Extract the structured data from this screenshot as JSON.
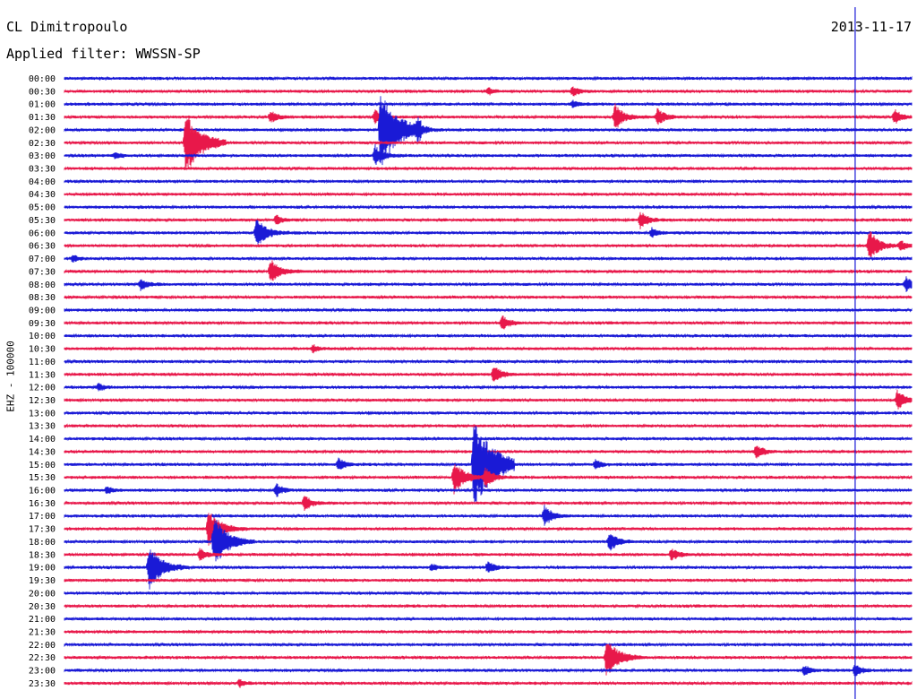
{
  "header": {
    "station": "CL Dimitropoulo",
    "filter": "Applied filter: WWSSN-SP",
    "date": "2013-11-17"
  },
  "channel_label": "EHZ - 100000",
  "colors": {
    "trace_a": "#1a1ad6",
    "trace_b": "#e8184a",
    "marker": "#1a1ad6"
  },
  "chart_data": {
    "type": "line",
    "title": "CL Dimitropoulo",
    "subtitle": "Applied filter: WWSSN-SP",
    "date": "2013-11-17",
    "ylabel": "EHZ - 100000",
    "xlabel": "",
    "row_labels": [
      "00:00",
      "00:30",
      "01:00",
      "01:30",
      "02:00",
      "02:30",
      "03:00",
      "03:30",
      "04:00",
      "04:30",
      "05:00",
      "05:30",
      "06:00",
      "06:30",
      "07:00",
      "07:30",
      "08:00",
      "08:30",
      "09:00",
      "09:30",
      "10:00",
      "10:30",
      "11:00",
      "11:30",
      "12:00",
      "12:30",
      "13:00",
      "13:30",
      "14:00",
      "14:30",
      "15:00",
      "15:30",
      "16:00",
      "16:30",
      "17:00",
      "17:30",
      "18:00",
      "18:30",
      "19:00",
      "19:30",
      "20:00",
      "20:30",
      "21:00",
      "21:30",
      "22:00",
      "22:30",
      "23:00",
      "23:30"
    ],
    "xlim_minutes": [
      0,
      30
    ],
    "current_time": "23:58",
    "events": [
      {
        "row": "00:30",
        "minute": 15.0,
        "amp": 0.3
      },
      {
        "row": "00:30",
        "minute": 18.0,
        "amp": 0.4
      },
      {
        "row": "01:00",
        "minute": 18.0,
        "amp": 0.3
      },
      {
        "row": "01:30",
        "minute": 7.3,
        "amp": 0.5
      },
      {
        "row": "01:30",
        "minute": 11.0,
        "amp": 0.6
      },
      {
        "row": "01:30",
        "minute": 19.5,
        "amp": 1.0
      },
      {
        "row": "01:30",
        "minute": 21.0,
        "amp": 0.7
      },
      {
        "row": "01:30",
        "minute": 29.4,
        "amp": 0.6
      },
      {
        "row": "02:00",
        "minute": 11.2,
        "amp": 3.0
      },
      {
        "row": "02:00",
        "minute": 12.5,
        "amp": 0.7
      },
      {
        "row": "02:30",
        "minute": 4.3,
        "amp": 2.5
      },
      {
        "row": "03:00",
        "minute": 1.8,
        "amp": 0.3
      },
      {
        "row": "03:00",
        "minute": 11.0,
        "amp": 0.8
      },
      {
        "row": "05:30",
        "minute": 20.4,
        "amp": 0.7
      },
      {
        "row": "05:30",
        "minute": 7.5,
        "amp": 0.4
      },
      {
        "row": "06:00",
        "minute": 6.8,
        "amp": 1.2
      },
      {
        "row": "06:00",
        "minute": 20.8,
        "amp": 0.4
      },
      {
        "row": "06:30",
        "minute": 28.5,
        "amp": 1.2
      },
      {
        "row": "06:30",
        "minute": 29.6,
        "amp": 0.4
      },
      {
        "row": "07:00",
        "minute": 0.3,
        "amp": 0.3
      },
      {
        "row": "07:30",
        "minute": 7.3,
        "amp": 1.0
      },
      {
        "row": "08:00",
        "minute": 2.7,
        "amp": 0.5
      },
      {
        "row": "08:00",
        "minute": 29.8,
        "amp": 0.6
      },
      {
        "row": "09:30",
        "minute": 15.5,
        "amp": 0.6
      },
      {
        "row": "10:30",
        "minute": 8.8,
        "amp": 0.3
      },
      {
        "row": "11:30",
        "minute": 15.2,
        "amp": 0.7
      },
      {
        "row": "12:00",
        "minute": 1.2,
        "amp": 0.3
      },
      {
        "row": "12:30",
        "minute": 29.5,
        "amp": 0.8
      },
      {
        "row": "14:30",
        "minute": 24.5,
        "amp": 0.6
      },
      {
        "row": "15:00",
        "minute": 14.5,
        "amp": 3.5
      },
      {
        "row": "15:00",
        "minute": 9.7,
        "amp": 0.5
      },
      {
        "row": "15:00",
        "minute": 18.8,
        "amp": 0.4
      },
      {
        "row": "15:30",
        "minute": 13.8,
        "amp": 1.3
      },
      {
        "row": "15:30",
        "minute": 14.9,
        "amp": 0.8
      },
      {
        "row": "16:00",
        "minute": 1.5,
        "amp": 0.3
      },
      {
        "row": "16:00",
        "minute": 7.5,
        "amp": 0.5
      },
      {
        "row": "16:30",
        "minute": 8.5,
        "amp": 0.6
      },
      {
        "row": "17:00",
        "minute": 17.0,
        "amp": 0.8
      },
      {
        "row": "17:30",
        "minute": 5.1,
        "amp": 1.6
      },
      {
        "row": "18:00",
        "minute": 5.3,
        "amp": 2.0
      },
      {
        "row": "18:00",
        "minute": 19.3,
        "amp": 0.8
      },
      {
        "row": "18:30",
        "minute": 4.8,
        "amp": 0.5
      },
      {
        "row": "18:30",
        "minute": 21.5,
        "amp": 0.5
      },
      {
        "row": "19:00",
        "minute": 3.0,
        "amp": 1.8
      },
      {
        "row": "19:00",
        "minute": 15.0,
        "amp": 0.5
      },
      {
        "row": "19:00",
        "minute": 13.0,
        "amp": 0.3
      },
      {
        "row": "22:30",
        "minute": 19.2,
        "amp": 1.6
      },
      {
        "row": "23:00",
        "minute": 28.0,
        "amp": 0.5
      },
      {
        "row": "23:00",
        "minute": 26.2,
        "amp": 0.4
      },
      {
        "row": "23:30",
        "minute": 6.2,
        "amp": 0.3
      }
    ]
  }
}
